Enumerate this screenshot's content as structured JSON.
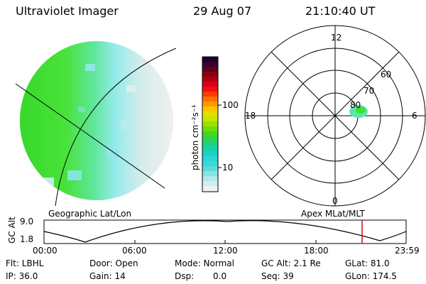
{
  "header": {
    "instrument": "Ultraviolet Imager",
    "date": "29 Aug 07",
    "time": "21:10:40 UT"
  },
  "colorbar": {
    "label": "photon cm⁻²s⁻¹",
    "ticks": [
      "100",
      "10"
    ]
  },
  "polar": {
    "labels": {
      "top": "12",
      "bottom": "0",
      "left": "18",
      "right": "6"
    },
    "rings": [
      "80",
      "70",
      "60"
    ]
  },
  "timeline": {
    "left_label": "Geographic Lat/Lon",
    "right_label": "Apex MLat/MLT",
    "axis_title": "GC Alt",
    "y_top": "9.0",
    "y_bottom": "1.8",
    "x_ticks": [
      "00:00",
      "06:00",
      "12:00",
      "18:00",
      "23:59"
    ]
  },
  "info": {
    "filter": "Flt: LBHL",
    "door": "Door: Open",
    "mode": "Mode: Normal",
    "gc_alt": "GC Alt: 2.1 Re",
    "glat": "GLat: 81.0",
    "ip": "IP: 36.0",
    "gain": "Gain: 14",
    "dsp_label": "Dsp:",
    "dsp_value": "0.0",
    "seq": "Seq: 39",
    "glon": "GLon: 174.5"
  },
  "colors": {
    "green": "#44e02c",
    "cyan": "#7fe6e6",
    "grey": "#e8ecec",
    "marker": "#cc1111"
  }
}
